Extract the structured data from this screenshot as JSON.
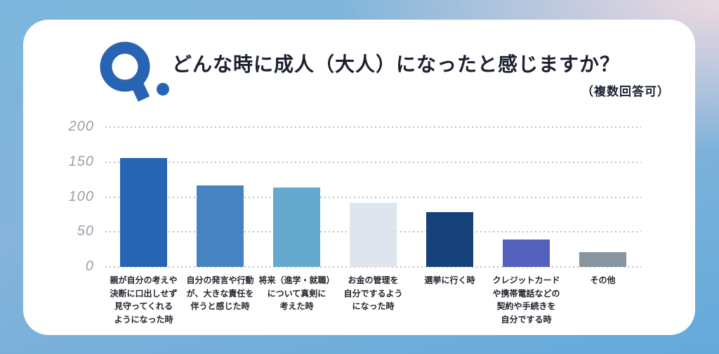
{
  "background": {
    "top_left_color": "#7cb6dc",
    "top_right_color": "#ecd9e1",
    "bottom_color": "#63aadb",
    "card_color": "#ffffff"
  },
  "logo": {
    "glyph": "Q.",
    "color": "#2765b4"
  },
  "header": {
    "title": "どんな時に成人（大人）になったと感じますか？",
    "subtitle": "（複数回答可）"
  },
  "chart_data": {
    "type": "bar",
    "title": "どんな時に成人（大人）になったと感じますか？",
    "subtitle": "（複数回答可）",
    "categories": [
      "親が自分の考えや決断に口出しせず見守ってくれるようになった時",
      "自分の発言や行動が、大きな責任を伴うと感じた時",
      "将来（進学・就職）について真剣に考えた時",
      "お金の管理を自分でするようになった時",
      "選挙に行く時",
      "クレジットカードや携帯電話などの契約や手続きを自分でする時",
      "その他"
    ],
    "category_lines": [
      [
        "親が自分の考えや",
        "決断に口出しせず",
        "見守ってくれる",
        "ようになった時"
      ],
      [
        "自分の発言や行動",
        "が、大きな責任を",
        "伴うと感じた時"
      ],
      [
        "将来（進学・就職）",
        "について真剣に",
        "考えた時"
      ],
      [
        "お金の管理を",
        "自分でするよう",
        "になった時"
      ],
      [
        "選挙に行く時"
      ],
      [
        "クレジットカード",
        "や携帯電話などの",
        "契約や手続きを",
        "自分でする時"
      ],
      [
        "その他"
      ]
    ],
    "values": [
      156,
      117,
      114,
      91,
      78,
      39,
      21
    ],
    "bar_colors": [
      "#2765b4",
      "#4583c3",
      "#66a9cf",
      "#dfe5ec",
      "#164279",
      "#5560bc",
      "#8894a0"
    ],
    "yticks": [
      200,
      150,
      100,
      50,
      0
    ],
    "ylim": [
      0,
      200
    ],
    "xlabel": "",
    "ylabel": "",
    "grid": "horizontal-dotted",
    "grid_color": "#b9bec5",
    "tick_label_color": "#9aa1a9",
    "legend": "none"
  }
}
